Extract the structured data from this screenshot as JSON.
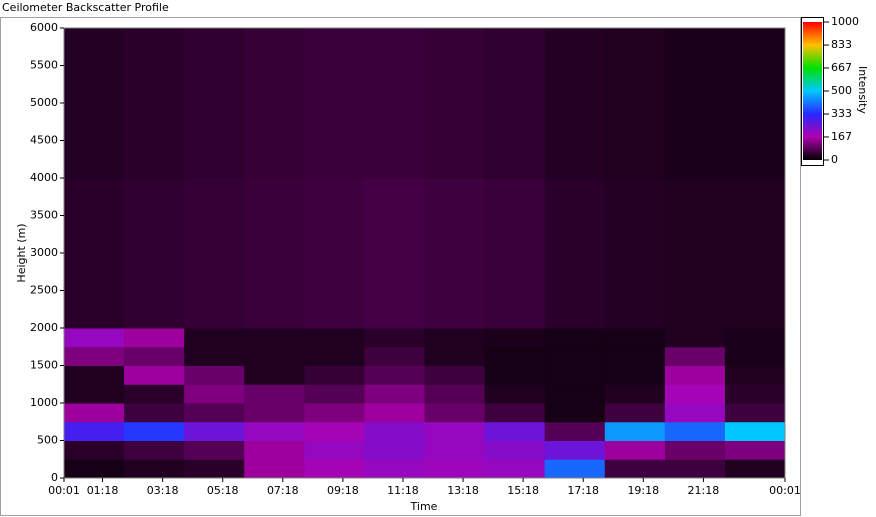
{
  "chart_data": {
    "type": "heatmap",
    "title": "Ceilometer Backscatter Profile",
    "x_label": "Time",
    "y_label": "Height (m)",
    "colorbar_label": "Intensity",
    "xlim": [
      1,
      1441
    ],
    "xticks": [
      {
        "value": 1,
        "label": "00:01"
      },
      {
        "value": 78,
        "label": "01:18"
      },
      {
        "value": 198,
        "label": "03:18"
      },
      {
        "value": 318,
        "label": "05:18"
      },
      {
        "value": 438,
        "label": "07:18"
      },
      {
        "value": 558,
        "label": "09:18"
      },
      {
        "value": 678,
        "label": "11:18"
      },
      {
        "value": 798,
        "label": "13:18"
      },
      {
        "value": 918,
        "label": "15:18"
      },
      {
        "value": 1038,
        "label": "17:18"
      },
      {
        "value": 1158,
        "label": "19:18"
      },
      {
        "value": 1278,
        "label": "21:18"
      },
      {
        "value": 1441,
        "label": "00:01"
      }
    ],
    "ylim": [
      0,
      6000
    ],
    "yticks": [
      0,
      500,
      1000,
      1500,
      2000,
      2500,
      3000,
      3500,
      4000,
      4500,
      5000,
      5500,
      6000
    ],
    "clim": [
      0,
      1000
    ],
    "cticks": [
      0,
      167,
      333,
      500,
      667,
      833,
      1000
    ],
    "colorscale": [
      [
        0,
        "#000000"
      ],
      [
        167,
        "#b000b0"
      ],
      [
        333,
        "#2828ff"
      ],
      [
        500,
        "#00c8ff"
      ],
      [
        667,
        "#00e000"
      ],
      [
        833,
        "#ffc000"
      ],
      [
        1000,
        "#ff0000"
      ]
    ],
    "xbins": [
      1,
      121,
      241,
      361,
      481,
      601,
      721,
      841,
      961,
      1081,
      1201,
      1321,
      1441
    ],
    "ybins": [
      0,
      250,
      500,
      750,
      1000,
      1250,
      1500,
      1750,
      2000,
      2250,
      2500,
      2750,
      3000,
      3250,
      3500,
      3750,
      4000,
      4250,
      4500,
      4750,
      5000,
      5250,
      5500,
      5750,
      6000
    ],
    "z": [
      [
        20,
        30,
        40,
        150,
        180,
        200,
        190,
        200,
        400,
        60,
        60,
        30
      ],
      [
        40,
        60,
        80,
        150,
        200,
        220,
        200,
        220,
        250,
        150,
        100,
        120
      ],
      [
        300,
        350,
        250,
        200,
        180,
        220,
        200,
        250,
        80,
        450,
        400,
        500
      ],
      [
        150,
        60,
        80,
        100,
        120,
        150,
        100,
        60,
        20,
        60,
        200,
        60
      ],
      [
        30,
        40,
        120,
        100,
        80,
        120,
        80,
        30,
        20,
        30,
        180,
        40
      ],
      [
        30,
        150,
        100,
        30,
        50,
        80,
        60,
        20,
        20,
        20,
        150,
        30
      ],
      [
        120,
        100,
        30,
        30,
        30,
        60,
        30,
        20,
        20,
        20,
        100,
        25
      ],
      [
        200,
        150,
        30,
        30,
        30,
        40,
        30,
        25,
        20,
        20,
        30,
        25
      ],
      [
        40,
        45,
        50,
        55,
        60,
        65,
        60,
        55,
        40,
        35,
        30,
        30
      ],
      [
        40,
        45,
        50,
        55,
        60,
        65,
        60,
        55,
        40,
        35,
        30,
        30
      ],
      [
        40,
        45,
        50,
        55,
        60,
        65,
        60,
        55,
        40,
        35,
        30,
        30
      ],
      [
        40,
        45,
        50,
        55,
        60,
        65,
        60,
        55,
        40,
        35,
        30,
        30
      ],
      [
        40,
        45,
        50,
        55,
        60,
        65,
        60,
        55,
        40,
        35,
        30,
        30
      ],
      [
        40,
        45,
        50,
        55,
        60,
        65,
        60,
        55,
        40,
        35,
        30,
        30
      ],
      [
        40,
        45,
        50,
        55,
        60,
        65,
        60,
        55,
        40,
        35,
        30,
        30
      ],
      [
        40,
        45,
        50,
        55,
        60,
        65,
        60,
        55,
        40,
        35,
        30,
        30
      ],
      [
        35,
        40,
        45,
        50,
        55,
        55,
        50,
        45,
        35,
        30,
        25,
        25
      ],
      [
        35,
        40,
        45,
        50,
        55,
        55,
        50,
        45,
        35,
        30,
        25,
        25
      ],
      [
        35,
        40,
        45,
        50,
        55,
        55,
        50,
        45,
        35,
        30,
        25,
        25
      ],
      [
        35,
        40,
        45,
        50,
        55,
        55,
        50,
        45,
        35,
        30,
        25,
        25
      ],
      [
        35,
        40,
        45,
        50,
        55,
        55,
        50,
        45,
        35,
        30,
        25,
        25
      ],
      [
        35,
        40,
        45,
        50,
        55,
        55,
        50,
        45,
        35,
        30,
        25,
        25
      ],
      [
        35,
        40,
        45,
        50,
        55,
        55,
        50,
        45,
        35,
        30,
        25,
        25
      ],
      [
        35,
        40,
        45,
        50,
        55,
        55,
        50,
        45,
        35,
        30,
        25,
        25
      ]
    ]
  }
}
